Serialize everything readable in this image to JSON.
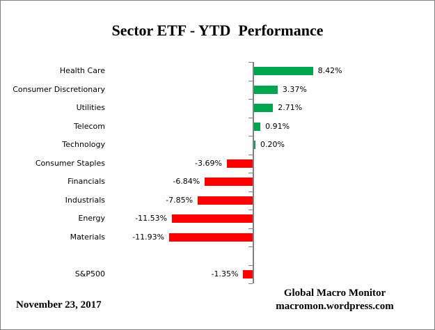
{
  "footer": {
    "date": "November 23, 2017",
    "source_line1": "Global Macro Monitor",
    "source_line2": "macromon.wordpress.com"
  },
  "colors": {
    "positive_bar": "#00A550",
    "negative_bar": "#FF0000",
    "axis": "#808080",
    "border": "#808080",
    "text": "#000000"
  },
  "chart_data": {
    "type": "bar",
    "orientation": "horizontal",
    "title": "Sector ETF - YTD  Performance",
    "categories": [
      "Health Care",
      "Consumer Discretionary",
      "Utilities",
      "Telecom",
      "Technology",
      "Consumer Staples",
      "Financials",
      "Industrials",
      "Energy",
      "Materials",
      "",
      "S&P500"
    ],
    "values": [
      8.42,
      3.37,
      2.71,
      0.91,
      0.2,
      -3.69,
      -6.84,
      -7.85,
      -11.53,
      -11.93,
      null,
      -1.35
    ],
    "labels": [
      "8.42%",
      "3.37%",
      "2.71%",
      "0.91%",
      "0.20%",
      "-3.69%",
      "-6.84%",
      "-7.85%",
      "-11.53%",
      "-11.93%",
      "",
      "-1.35%"
    ],
    "value_label_position": "outside-end",
    "gridlines": false,
    "legend": false,
    "category_axis_side": "left",
    "xlim": [
      -12.5,
      26
    ]
  }
}
